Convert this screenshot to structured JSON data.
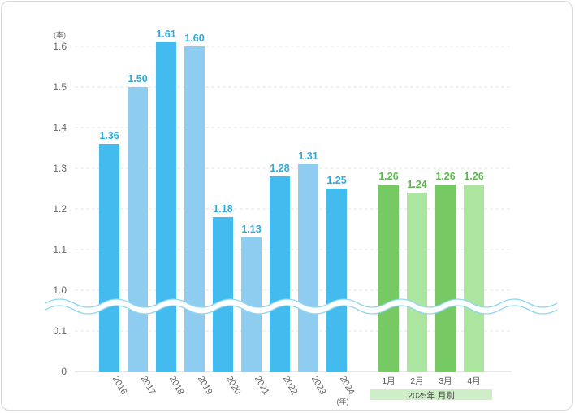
{
  "chart_data": {
    "type": "bar",
    "yunit": "(率)",
    "xunit": "(年)",
    "y_ticks": [
      "0",
      "0.1",
      "1.0",
      "1.1",
      "1.2",
      "1.3",
      "1.4",
      "1.5",
      "1.6"
    ],
    "axis_break": "between 0.1 and 1.0",
    "annual": {
      "categories": [
        "2016",
        "2017",
        "2018",
        "2019",
        "2020",
        "2021",
        "2022",
        "2023",
        "2024"
      ],
      "values": [
        1.36,
        1.5,
        1.61,
        1.6,
        1.18,
        1.13,
        1.28,
        1.31,
        1.25
      ],
      "colors": [
        "#44bbee",
        "#8ecdf0",
        "#44bbee",
        "#8ecdf0",
        "#44bbee",
        "#8ecdf0",
        "#44bbee",
        "#8ecdf0",
        "#44bbee"
      ],
      "label_color": "#2fa9de"
    },
    "monthly": {
      "group_label": "2025年 月別",
      "categories": [
        "1月",
        "2月",
        "3月",
        "4月"
      ],
      "values": [
        1.26,
        1.24,
        1.26,
        1.26
      ],
      "colors": [
        "#76c963",
        "#ace5a0",
        "#76c963",
        "#ace5a0"
      ],
      "label_color": "#5cb84e",
      "group_bg": "#cdeec6"
    },
    "grid": true,
    "break_wave_color": "#8ed6f0"
  }
}
